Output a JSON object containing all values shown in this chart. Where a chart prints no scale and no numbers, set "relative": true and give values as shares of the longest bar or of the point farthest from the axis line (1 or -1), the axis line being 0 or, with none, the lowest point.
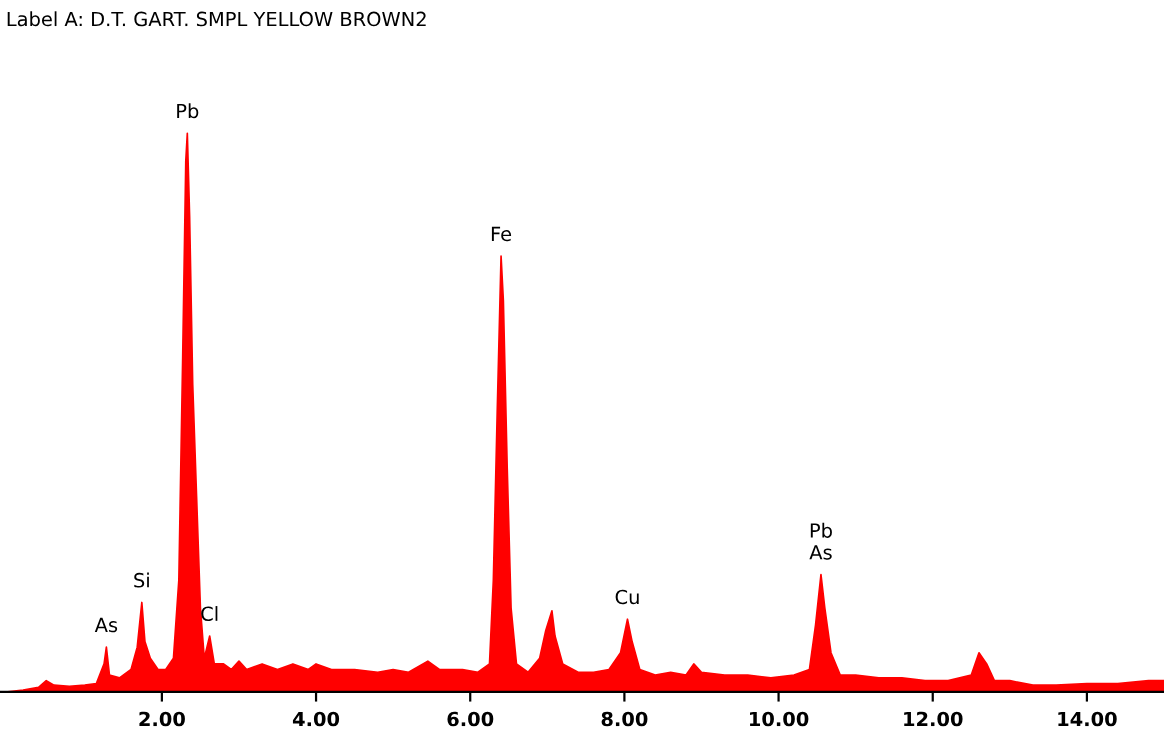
{
  "chart_data": {
    "type": "area",
    "title": "Label A: D.T. GART. SMPL YELLOW BROWN2",
    "relative": true,
    "color": "#ff0000",
    "x": [
      0.0,
      0.2,
      0.4,
      0.5,
      0.6,
      0.8,
      1.0,
      1.15,
      1.25,
      1.28,
      1.32,
      1.45,
      1.6,
      1.68,
      1.74,
      1.78,
      1.85,
      1.95,
      2.05,
      2.15,
      2.22,
      2.27,
      2.31,
      2.33,
      2.36,
      2.4,
      2.45,
      2.5,
      2.55,
      2.62,
      2.68,
      2.8,
      2.9,
      3.0,
      3.1,
      3.3,
      3.5,
      3.7,
      3.9,
      4.0,
      4.2,
      4.5,
      4.8,
      5.0,
      5.2,
      5.45,
      5.6,
      5.9,
      6.1,
      6.25,
      6.3,
      6.35,
      6.4,
      6.43,
      6.48,
      6.53,
      6.6,
      6.75,
      6.9,
      6.98,
      7.06,
      7.1,
      7.2,
      7.4,
      7.6,
      7.8,
      7.95,
      8.04,
      8.1,
      8.2,
      8.4,
      8.6,
      8.8,
      8.9,
      9.0,
      9.3,
      9.6,
      9.9,
      10.2,
      10.4,
      10.48,
      10.55,
      10.6,
      10.68,
      10.8,
      11.0,
      11.3,
      11.6,
      11.9,
      12.2,
      12.5,
      12.6,
      12.7,
      12.8,
      13.0,
      13.3,
      13.6,
      14.0,
      14.4,
      14.8,
      15.0
    ],
    "values": [
      0.0,
      0.003,
      0.008,
      0.02,
      0.012,
      0.01,
      0.012,
      0.015,
      0.05,
      0.08,
      0.03,
      0.025,
      0.04,
      0.08,
      0.16,
      0.09,
      0.06,
      0.04,
      0.04,
      0.06,
      0.2,
      0.6,
      0.95,
      1.0,
      0.85,
      0.55,
      0.35,
      0.15,
      0.06,
      0.1,
      0.05,
      0.05,
      0.04,
      0.055,
      0.04,
      0.05,
      0.04,
      0.05,
      0.04,
      0.05,
      0.04,
      0.04,
      0.035,
      0.04,
      0.035,
      0.055,
      0.04,
      0.04,
      0.035,
      0.05,
      0.2,
      0.5,
      0.78,
      0.7,
      0.4,
      0.15,
      0.05,
      0.035,
      0.06,
      0.11,
      0.145,
      0.1,
      0.05,
      0.035,
      0.035,
      0.04,
      0.07,
      0.13,
      0.09,
      0.04,
      0.03,
      0.035,
      0.03,
      0.05,
      0.035,
      0.03,
      0.03,
      0.025,
      0.03,
      0.04,
      0.12,
      0.21,
      0.15,
      0.07,
      0.03,
      0.03,
      0.025,
      0.025,
      0.02,
      0.02,
      0.03,
      0.07,
      0.05,
      0.02,
      0.02,
      0.012,
      0.012,
      0.015,
      0.015,
      0.02,
      0.02
    ],
    "xlim": [
      -0.1,
      15.0
    ],
    "xticks": [
      {
        "value": 2,
        "label": "2.00"
      },
      {
        "value": 4,
        "label": "4.00"
      },
      {
        "value": 6,
        "label": "6.00"
      },
      {
        "value": 8,
        "label": "8.00"
      },
      {
        "value": 10,
        "label": "10.00"
      },
      {
        "value": 12,
        "label": "12.00"
      },
      {
        "value": 14,
        "label": "14.00"
      }
    ],
    "annotations": [
      {
        "text": "As",
        "x": 1.28,
        "y": 0.08
      },
      {
        "text": "Si",
        "x": 1.74,
        "y": 0.16
      },
      {
        "text": "Pb",
        "x": 2.33,
        "y": 1.0
      },
      {
        "text": "Cl",
        "x": 2.62,
        "y": 0.1
      },
      {
        "text": "Fe",
        "x": 6.4,
        "y": 0.78
      },
      {
        "text": "Cu",
        "x": 8.04,
        "y": 0.13
      },
      {
        "text": "Pb\nAs",
        "x": 10.55,
        "y": 0.21
      }
    ],
    "grid": false,
    "legend": false
  }
}
